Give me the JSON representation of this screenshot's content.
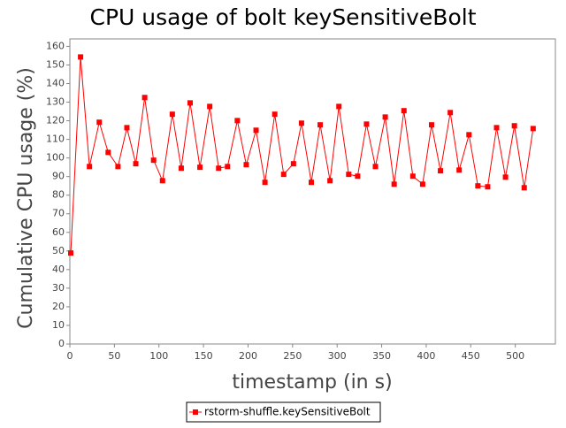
{
  "chart_data": {
    "type": "line",
    "title": "CPU usage of bolt keySensitiveBolt",
    "x_label": "timestamp (in s)",
    "y_label": "Cumulative CPU usage (%)",
    "x": [
      1,
      12,
      22,
      33,
      43,
      54,
      64,
      74,
      84,
      94,
      104,
      115,
      125,
      135,
      146,
      157,
      167,
      177,
      188,
      198,
      209,
      219,
      230,
      240,
      251,
      260,
      271,
      281,
      292,
      302,
      313,
      323,
      333,
      343,
      354,
      364,
      375,
      385,
      396,
      406,
      416,
      427,
      437,
      448,
      458,
      469,
      479,
      489,
      499,
      510,
      520
    ],
    "series": [
      {
        "name": "rstorm-shuffle.keySensitiveBolt",
        "color": "#ff0000",
        "values": [
          48.9,
          154.3,
          95.4,
          119.2,
          103,
          95.4,
          116.3,
          96.9,
          132.5,
          98.8,
          87.8,
          123.5,
          94.5,
          129.6,
          95,
          127.7,
          94.5,
          95.4,
          120.1,
          96.4,
          114.9,
          86.9,
          123.5,
          91.2,
          96.9,
          118.7,
          86.9,
          117.8,
          87.8,
          127.7,
          91.2,
          90.2,
          118.2,
          95.4,
          122,
          85.9,
          125.4,
          90.2,
          85.9,
          117.8,
          93.1,
          124.4,
          93.5,
          112.5,
          85,
          84.5,
          116.3,
          89.7,
          117.3,
          84,
          115.8
        ]
      }
    ],
    "xlim": [
      0,
      545
    ],
    "xticks": [
      0,
      50,
      100,
      150,
      200,
      250,
      300,
      350,
      400,
      450,
      500
    ],
    "ylim": [
      0,
      164
    ],
    "yticks": [
      0,
      10,
      20,
      30,
      40,
      50,
      60,
      70,
      80,
      90,
      100,
      110,
      120,
      130,
      140,
      150,
      160
    ],
    "grid": false,
    "legend": "bottom"
  }
}
